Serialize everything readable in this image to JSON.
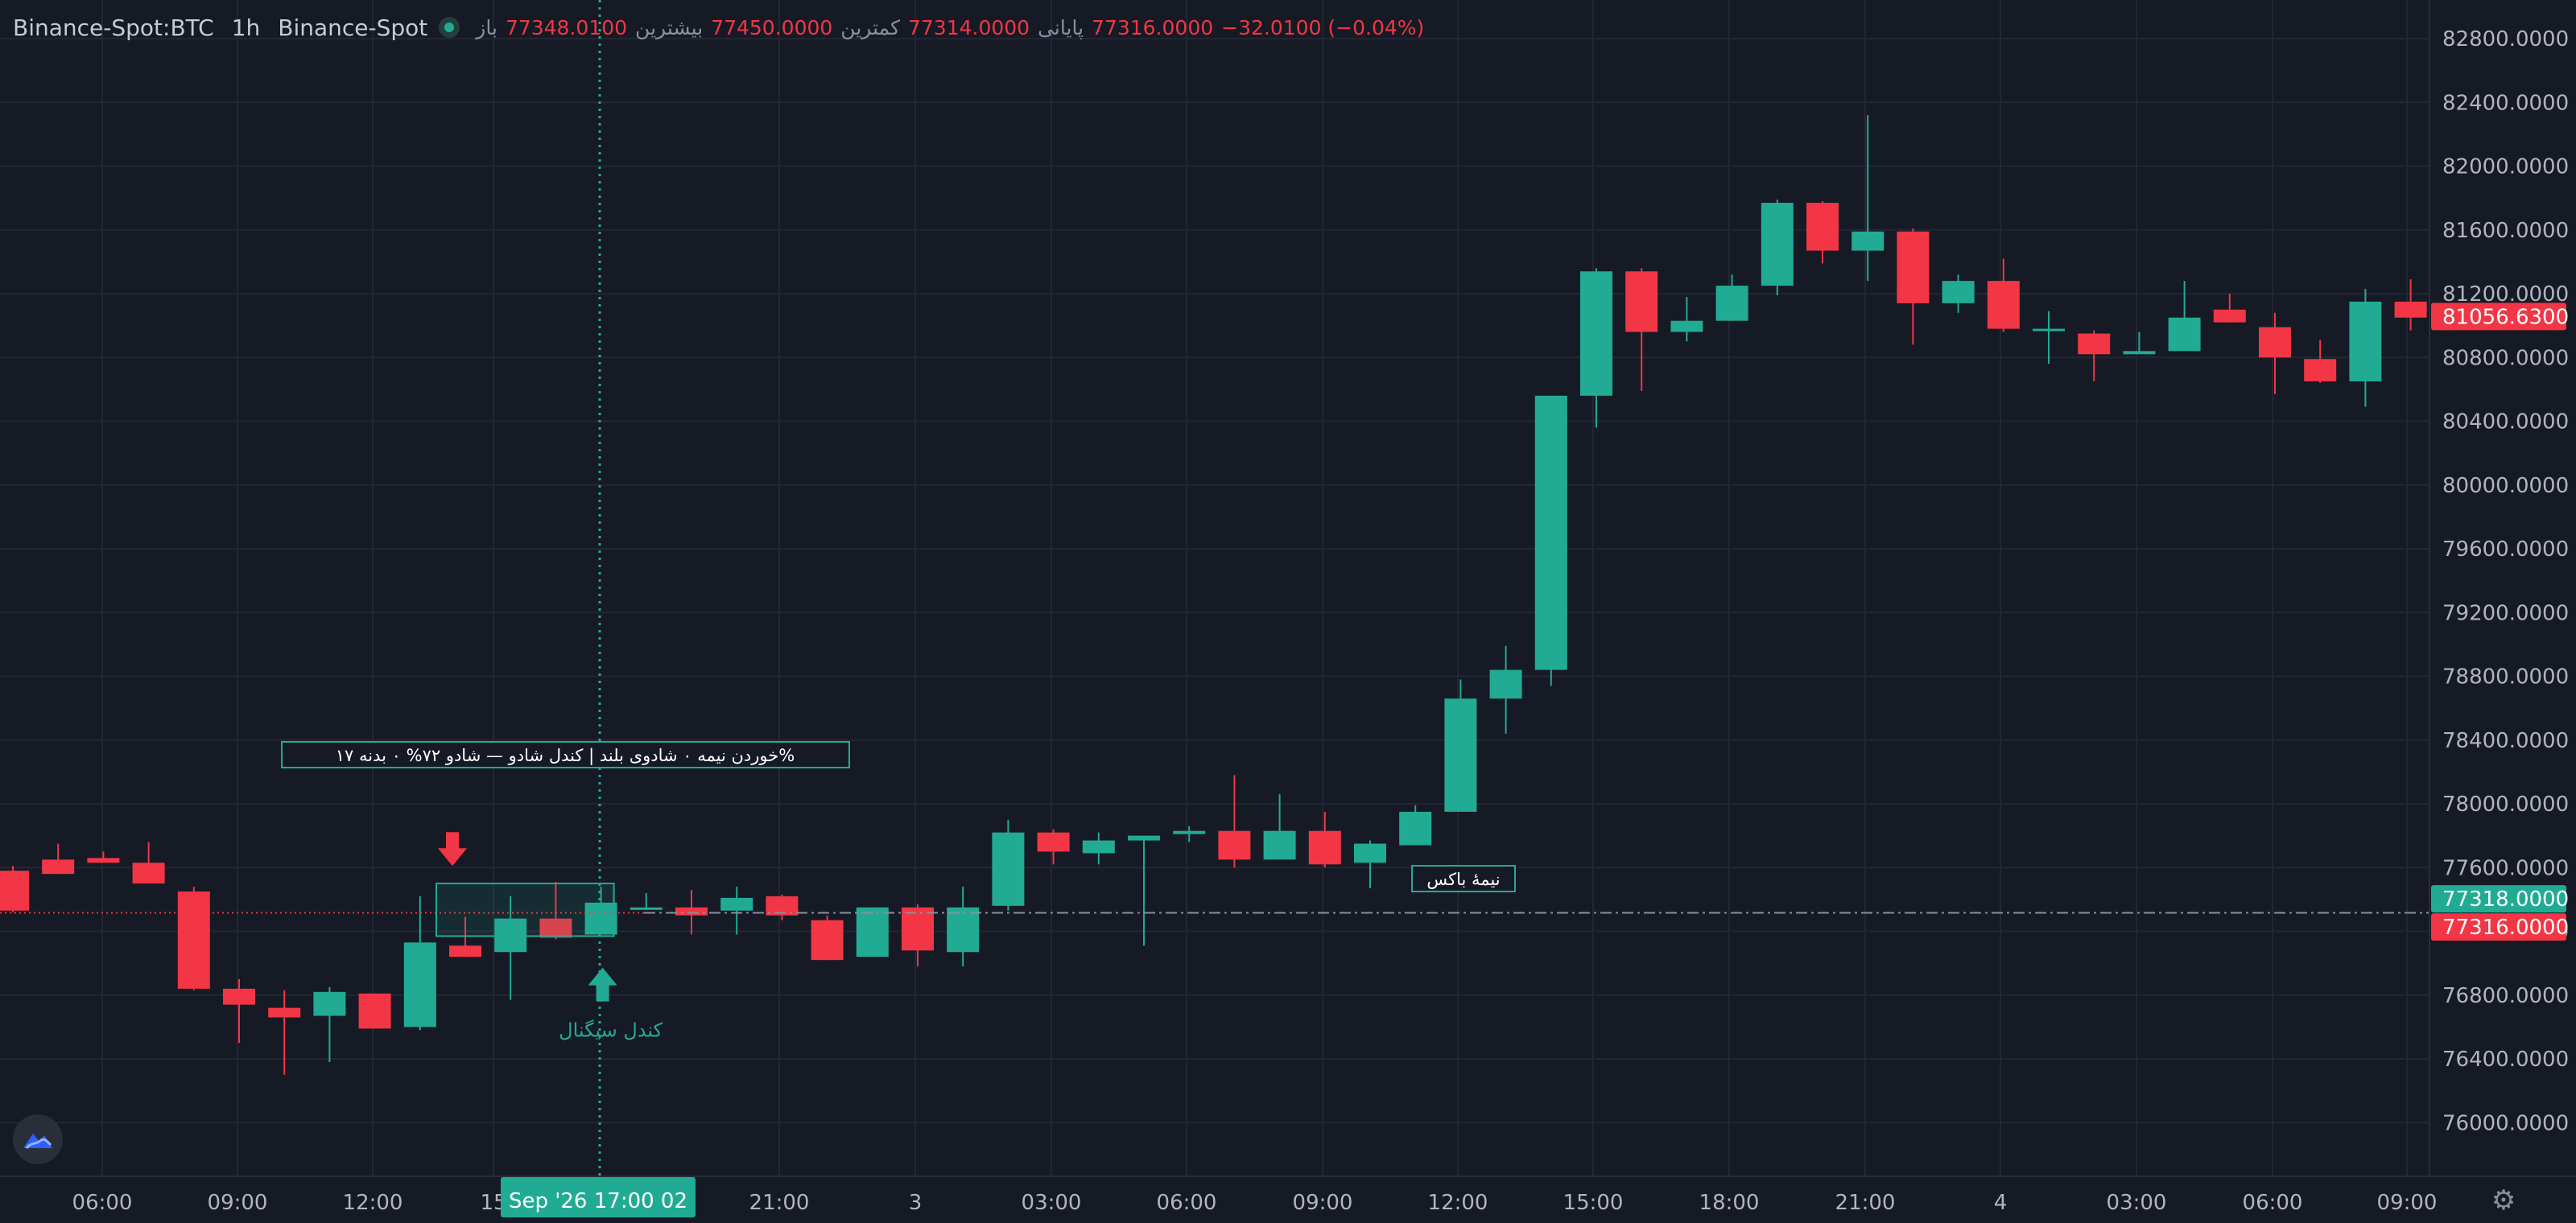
{
  "legend": {
    "symbol": "Binance-Spot:BTC",
    "interval": "1h",
    "exchange": "Binance-Spot",
    "open_label": "باز",
    "open": "77348.0100",
    "high_label": "بیشترین",
    "high": "77450.0000",
    "low_label": "کمترین",
    "low": "77314.0000",
    "close_label": "پایانی",
    "close": "77316.0000",
    "change": "−32.0100 (−0.04%)"
  },
  "colors": {
    "background": "#161a25",
    "grid": "#232734",
    "up": "#22ab94",
    "down": "#f23645",
    "text": "#d1d4dc",
    "axis_text": "#b2b5be"
  },
  "chart_data": {
    "type": "candlestick",
    "interval": "1h",
    "ylim": [
      75700,
      82900
    ],
    "y_ticks": [
      "82800.0000",
      "82400.0000",
      "82000.0000",
      "81600.0000",
      "81200.0000",
      "80800.0000",
      "80400.0000",
      "80000.0000",
      "79600.0000",
      "79200.0000",
      "78800.0000",
      "78400.0000",
      "78000.0000",
      "77600.0000",
      "77200.0000",
      "76800.0000",
      "76400.0000",
      "76000.0000"
    ],
    "x_labels": [
      "06:00",
      "09:00",
      "12:00",
      "15",
      "21:00",
      "3",
      "03:00",
      "06:00",
      "09:00",
      "12:00",
      "15:00",
      "18:00",
      "21:00",
      "4",
      "03:00",
      "06:00",
      "09:00"
    ],
    "crosshair_label": "Sep '26   17:00 02",
    "candles": [
      [
        77580,
        77610,
        77320,
        77330
      ],
      [
        77650,
        77750,
        77560,
        77560
      ],
      [
        77660,
        77700,
        77640,
        77630
      ],
      [
        77630,
        77760,
        77500,
        77500
      ],
      [
        77450,
        77480,
        76830,
        76840
      ],
      [
        76840,
        76900,
        76500,
        76740
      ],
      [
        76720,
        76830,
        76300,
        76660
      ],
      [
        76670,
        76850,
        76380,
        76820
      ],
      [
        76810,
        76810,
        76590,
        76590
      ],
      [
        76600,
        77420,
        76580,
        77130
      ],
      [
        77110,
        77290,
        77040,
        77040
      ],
      [
        77070,
        77420,
        76770,
        77280
      ],
      [
        77280,
        77510,
        77150,
        77160
      ],
      [
        77180,
        77480,
        77180,
        77380
      ],
      [
        77340,
        77440,
        77340,
        77350
      ],
      [
        77350,
        77460,
        77180,
        77300
      ],
      [
        77330,
        77480,
        77180,
        77410
      ],
      [
        77420,
        77430,
        77270,
        77300
      ],
      [
        77270,
        77300,
        77020,
        77020
      ],
      [
        77040,
        77340,
        77040,
        77350
      ],
      [
        77350,
        77370,
        76980,
        77080
      ],
      [
        77070,
        77480,
        76980,
        77350
      ],
      [
        77360,
        77900,
        77330,
        77820
      ],
      [
        77820,
        77840,
        77620,
        77700
      ],
      [
        77690,
        77820,
        77620,
        77770
      ],
      [
        77770,
        77800,
        77110,
        77800
      ],
      [
        77810,
        77860,
        77760,
        77830
      ],
      [
        77830,
        78180,
        77600,
        77650
      ],
      [
        77650,
        78060,
        77650,
        77830
      ],
      [
        77830,
        77950,
        77600,
        77620
      ],
      [
        77630,
        77770,
        77470,
        77750
      ],
      [
        77740,
        77990,
        77740,
        77950
      ],
      [
        77950,
        78780,
        77950,
        78660
      ],
      [
        78660,
        78990,
        78440,
        78840
      ],
      [
        78840,
        80560,
        78740,
        80560
      ],
      [
        80560,
        81360,
        80360,
        81340
      ],
      [
        81340,
        81360,
        80590,
        80960
      ],
      [
        80960,
        81180,
        80900,
        81030
      ],
      [
        81030,
        81320,
        81030,
        81250
      ],
      [
        81250,
        81790,
        81190,
        81770
      ],
      [
        81770,
        81780,
        81390,
        81470
      ],
      [
        81470,
        82320,
        81280,
        81590
      ],
      [
        81590,
        81610,
        80880,
        81140
      ],
      [
        81140,
        81320,
        81080,
        81280
      ],
      [
        81280,
        81420,
        80960,
        80980
      ],
      [
        80980,
        81090,
        80760,
        80980
      ],
      [
        80950,
        80970,
        80650,
        80820
      ],
      [
        80820,
        80960,
        80820,
        80840
      ],
      [
        80840,
        81280,
        80840,
        81050
      ],
      [
        81100,
        81200,
        81020,
        81020
      ],
      [
        80990,
        81080,
        80570,
        80800
      ],
      [
        80790,
        80910,
        80640,
        80650
      ],
      [
        80650,
        81230,
        80490,
        81150
      ],
      [
        81150,
        81290,
        80970,
        81050
      ]
    ],
    "last_price": "81056.6300",
    "price_line_1": "77318.0000",
    "price_line_2": "77316.0000",
    "annotations": {
      "top_note": "%خوردن نیمه ۰ شادوی بلند | کندل شادو — شادو ۷۲% ۰ بدنه ۱۷",
      "half_box": "نیمهٔ باکس",
      "signal": "کندل سیگنال"
    }
  }
}
